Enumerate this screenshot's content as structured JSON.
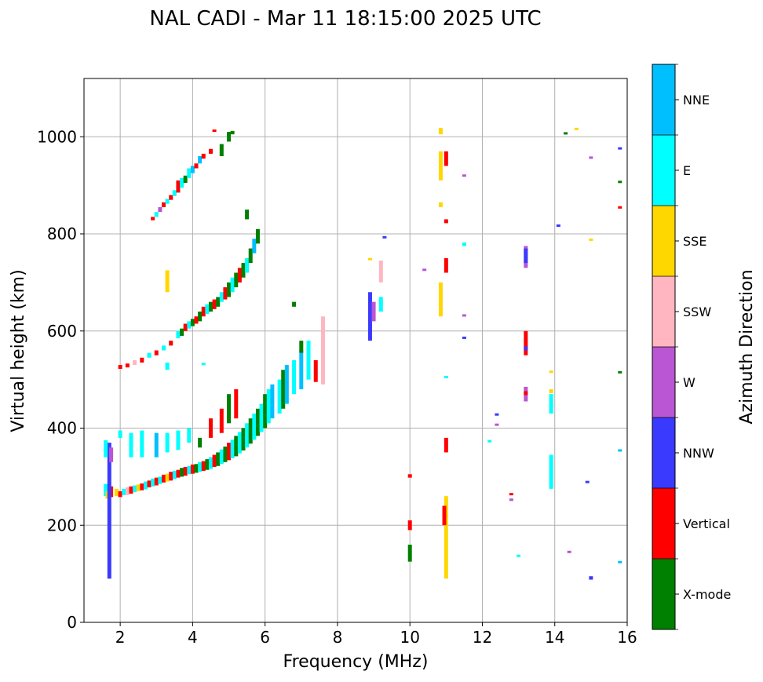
{
  "chart_data": {
    "type": "scatter",
    "title": "NAL CADI - Mar 11 18:15:00 2025 UTC",
    "xlabel": "Frequency (MHz)",
    "ylabel": "Virtual height (km)",
    "xlim": [
      1,
      16
    ],
    "ylim": [
      0,
      1120
    ],
    "xticks": [
      2,
      4,
      6,
      8,
      10,
      12,
      14,
      16
    ],
    "yticks": [
      0,
      200,
      400,
      600,
      800,
      1000
    ],
    "grid": true,
    "colorbar": {
      "label": "Azimuth Direction",
      "categories": [
        "X-mode",
        "Vertical",
        "NNW",
        "W",
        "SSW",
        "SSE",
        "E",
        "NNE"
      ],
      "colors": [
        "#008000",
        "#ff0000",
        "#3a3aff",
        "#ba55d3",
        "#ffb6c1",
        "#ffd700",
        "#00ffff",
        "#00bfff"
      ]
    },
    "points_format": "[frequency_MHz, height_km_low, height_km_high, category_index]",
    "points": [
      [
        1.6,
        260,
        285,
        6
      ],
      [
        1.65,
        255,
        270,
        5
      ],
      [
        1.75,
        258,
        280,
        1
      ],
      [
        1.7,
        90,
        370,
        2
      ],
      [
        1.6,
        340,
        375,
        6
      ],
      [
        1.75,
        330,
        360,
        3
      ],
      [
        1.9,
        260,
        275,
        5
      ],
      [
        2.0,
        258,
        270,
        1
      ],
      [
        2.1,
        262,
        275,
        6
      ],
      [
        2.2,
        262,
        278,
        4
      ],
      [
        2.3,
        265,
        280,
        1
      ],
      [
        2.4,
        268,
        282,
        6
      ],
      [
        2.5,
        270,
        284,
        5
      ],
      [
        2.6,
        272,
        286,
        1
      ],
      [
        2.7,
        274,
        290,
        6
      ],
      [
        2.8,
        278,
        292,
        1
      ],
      [
        2.9,
        280,
        296,
        6
      ],
      [
        3.0,
        282,
        298,
        1
      ],
      [
        3.1,
        285,
        300,
        6
      ],
      [
        3.2,
        288,
        304,
        1
      ],
      [
        3.3,
        290,
        306,
        5
      ],
      [
        3.4,
        292,
        310,
        1
      ],
      [
        3.5,
        295,
        312,
        6
      ],
      [
        3.6,
        298,
        314,
        1
      ],
      [
        3.7,
        300,
        318,
        0
      ],
      [
        3.8,
        302,
        320,
        1
      ],
      [
        3.9,
        305,
        322,
        6
      ],
      [
        4.0,
        306,
        325,
        1
      ],
      [
        4.1,
        308,
        326,
        0
      ],
      [
        4.2,
        310,
        330,
        6
      ],
      [
        4.3,
        312,
        332,
        1
      ],
      [
        4.4,
        314,
        336,
        0
      ],
      [
        4.5,
        316,
        340,
        6
      ],
      [
        4.6,
        320,
        345,
        1
      ],
      [
        4.7,
        322,
        350,
        0
      ],
      [
        4.8,
        326,
        356,
        6
      ],
      [
        4.9,
        330,
        362,
        0
      ],
      [
        5.0,
        334,
        370,
        1
      ],
      [
        5.1,
        338,
        376,
        6
      ],
      [
        5.2,
        342,
        384,
        0
      ],
      [
        5.3,
        348,
        392,
        6
      ],
      [
        5.4,
        354,
        400,
        0
      ],
      [
        5.5,
        360,
        410,
        6
      ],
      [
        5.6,
        368,
        420,
        0
      ],
      [
        5.7,
        376,
        430,
        6
      ],
      [
        5.8,
        384,
        440,
        0
      ],
      [
        5.9,
        392,
        450,
        6
      ],
      [
        6.0,
        400,
        470,
        0
      ],
      [
        6.1,
        410,
        480,
        6
      ],
      [
        6.2,
        420,
        490,
        7
      ],
      [
        6.4,
        430,
        500,
        6
      ],
      [
        6.5,
        440,
        520,
        0
      ],
      [
        6.6,
        450,
        530,
        7
      ],
      [
        6.8,
        470,
        540,
        6
      ],
      [
        7.0,
        480,
        560,
        7
      ],
      [
        7.2,
        500,
        580,
        6
      ],
      [
        7.4,
        495,
        540,
        1
      ],
      [
        7.6,
        490,
        630,
        4
      ],
      [
        7.0,
        555,
        580,
        0
      ],
      [
        6.8,
        650,
        660,
        0
      ],
      [
        2.0,
        380,
        395,
        6
      ],
      [
        2.3,
        340,
        390,
        6
      ],
      [
        2.6,
        340,
        395,
        6
      ],
      [
        3.0,
        340,
        390,
        7
      ],
      [
        3.3,
        350,
        390,
        6
      ],
      [
        3.6,
        355,
        395,
        6
      ],
      [
        3.9,
        370,
        400,
        6
      ],
      [
        4.2,
        360,
        380,
        0
      ],
      [
        4.5,
        380,
        420,
        1
      ],
      [
        4.8,
        390,
        440,
        1
      ],
      [
        5.0,
        410,
        470,
        0
      ],
      [
        5.2,
        420,
        480,
        1
      ],
      [
        2.0,
        522,
        530,
        1
      ],
      [
        2.2,
        525,
        533,
        1
      ],
      [
        2.4,
        530,
        540,
        4
      ],
      [
        2.6,
        535,
        545,
        1
      ],
      [
        2.8,
        545,
        555,
        6
      ],
      [
        3.0,
        550,
        560,
        1
      ],
      [
        3.2,
        560,
        570,
        6
      ],
      [
        3.4,
        570,
        580,
        1
      ],
      [
        3.6,
        585,
        600,
        6
      ],
      [
        3.7,
        590,
        605,
        0
      ],
      [
        3.8,
        600,
        615,
        1
      ],
      [
        3.9,
        605,
        620,
        6
      ],
      [
        4.0,
        610,
        625,
        0
      ],
      [
        4.1,
        615,
        630,
        1
      ],
      [
        4.2,
        620,
        640,
        0
      ],
      [
        4.3,
        630,
        650,
        1
      ],
      [
        4.4,
        635,
        655,
        6
      ],
      [
        4.5,
        640,
        660,
        0
      ],
      [
        4.6,
        645,
        665,
        1
      ],
      [
        4.7,
        650,
        670,
        0
      ],
      [
        4.8,
        660,
        680,
        6
      ],
      [
        4.9,
        665,
        690,
        1
      ],
      [
        5.0,
        670,
        700,
        0
      ],
      [
        5.1,
        680,
        710,
        6
      ],
      [
        5.2,
        690,
        720,
        0
      ],
      [
        5.3,
        700,
        730,
        1
      ],
      [
        5.4,
        710,
        740,
        0
      ],
      [
        5.5,
        720,
        750,
        6
      ],
      [
        5.6,
        740,
        770,
        0
      ],
      [
        5.7,
        760,
        790,
        7
      ],
      [
        5.8,
        780,
        810,
        0
      ],
      [
        5.5,
        830,
        850,
        0
      ],
      [
        3.3,
        680,
        725,
        5
      ],
      [
        3.3,
        520,
        535,
        6
      ],
      [
        4.3,
        530,
        532,
        6
      ],
      [
        2.9,
        828,
        835,
        1
      ],
      [
        3.0,
        835,
        845,
        6
      ],
      [
        3.1,
        845,
        855,
        3
      ],
      [
        3.2,
        855,
        865,
        1
      ],
      [
        3.3,
        862,
        872,
        6
      ],
      [
        3.4,
        870,
        880,
        1
      ],
      [
        3.5,
        878,
        890,
        6
      ],
      [
        3.6,
        885,
        910,
        1
      ],
      [
        3.7,
        895,
        915,
        6
      ],
      [
        3.8,
        905,
        920,
        0
      ],
      [
        3.9,
        915,
        935,
        6
      ],
      [
        4.0,
        925,
        940,
        7
      ],
      [
        4.1,
        935,
        945,
        1
      ],
      [
        4.2,
        945,
        960,
        7
      ],
      [
        4.3,
        955,
        965,
        1
      ],
      [
        4.5,
        965,
        975,
        1
      ],
      [
        4.6,
        1010,
        1015,
        1
      ],
      [
        4.8,
        960,
        985,
        0
      ],
      [
        5.0,
        990,
        1010,
        0
      ],
      [
        5.1,
        1005,
        1012,
        0
      ],
      [
        8.9,
        580,
        680,
        2
      ],
      [
        9.0,
        620,
        660,
        3
      ],
      [
        9.2,
        640,
        670,
        6
      ],
      [
        9.2,
        700,
        745,
        4
      ],
      [
        8.9,
        745,
        748,
        5
      ],
      [
        9.3,
        790,
        793,
        2
      ],
      [
        10.0,
        125,
        160,
        0
      ],
      [
        10.0,
        190,
        210,
        1
      ],
      [
        10.0,
        298,
        305,
        1
      ],
      [
        10.4,
        724,
        726,
        3
      ],
      [
        11.0,
        90,
        260,
        5
      ],
      [
        10.95,
        200,
        240,
        1
      ],
      [
        11.0,
        350,
        380,
        1
      ],
      [
        11.0,
        502,
        505,
        6
      ],
      [
        10.85,
        630,
        700,
        5
      ],
      [
        11.0,
        720,
        750,
        1
      ],
      [
        10.85,
        910,
        970,
        5
      ],
      [
        11.0,
        940,
        970,
        1
      ],
      [
        10.85,
        1005,
        1018,
        5
      ],
      [
        10.85,
        855,
        865,
        5
      ],
      [
        11.0,
        822,
        830,
        1
      ],
      [
        11.5,
        583,
        586,
        2
      ],
      [
        11.5,
        628,
        632,
        3
      ],
      [
        11.5,
        775,
        782,
        6
      ],
      [
        11.5,
        916,
        920,
        3
      ],
      [
        12.2,
        371,
        373,
        6
      ],
      [
        12.4,
        403,
        407,
        3
      ],
      [
        12.4,
        424,
        428,
        2
      ],
      [
        12.8,
        250,
        255,
        3
      ],
      [
        12.8,
        260,
        264,
        1
      ],
      [
        13.0,
        134,
        137,
        6
      ],
      [
        13.2,
        455,
        485,
        3
      ],
      [
        13.2,
        468,
        476,
        1
      ],
      [
        13.2,
        550,
        600,
        1
      ],
      [
        13.2,
        560,
        568,
        2
      ],
      [
        13.2,
        730,
        775,
        3
      ],
      [
        13.2,
        740,
        770,
        2
      ],
      [
        13.9,
        275,
        345,
        6
      ],
      [
        13.9,
        430,
        470,
        6
      ],
      [
        13.9,
        472,
        480,
        5
      ],
      [
        13.9,
        513,
        516,
        5
      ],
      [
        14.1,
        814,
        817,
        2
      ],
      [
        14.3,
        1003,
        1007,
        0
      ],
      [
        14.4,
        141,
        145,
        3
      ],
      [
        14.6,
        1013,
        1016,
        5
      ],
      [
        14.9,
        287,
        289,
        2
      ],
      [
        15.0,
        88,
        95,
        2
      ],
      [
        15.0,
        785,
        788,
        5
      ],
      [
        15.0,
        954,
        957,
        3
      ],
      [
        15.8,
        121,
        124,
        7
      ],
      [
        15.8,
        351,
        354,
        7
      ],
      [
        15.8,
        512,
        515,
        0
      ],
      [
        15.8,
        852,
        857,
        1
      ],
      [
        15.8,
        904,
        907,
        0
      ],
      [
        15.8,
        974,
        976,
        2
      ]
    ]
  }
}
